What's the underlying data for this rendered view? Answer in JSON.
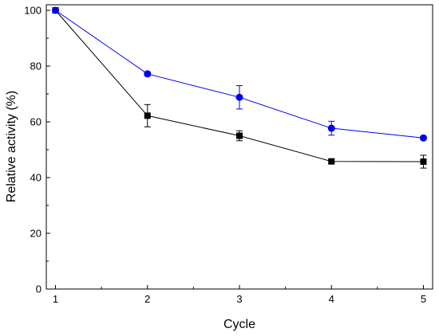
{
  "chart_data": {
    "type": "line",
    "title": "",
    "xlabel": "Cycle",
    "ylabel": "Relative activity (%)",
    "xlim": [
      0.9,
      5.1
    ],
    "ylim": [
      0,
      102
    ],
    "x_ticks": [
      1,
      2,
      3,
      4,
      5
    ],
    "y_ticks": [
      0,
      20,
      40,
      60,
      80,
      100
    ],
    "grid": false,
    "legend": "none",
    "series": [
      {
        "color": "#000000",
        "marker": "square",
        "x": [
          1,
          2,
          3,
          4,
          5
        ],
        "y": [
          100,
          62.2,
          55,
          45.8,
          45.7
        ],
        "err": [
          0,
          4,
          1.8,
          0.6,
          2.3
        ]
      },
      {
        "color": "#0000ee",
        "marker": "circle",
        "x": [
          1,
          2,
          3,
          4,
          5
        ],
        "y": [
          100,
          77.2,
          68.8,
          57.7,
          54.2
        ],
        "err": [
          0,
          0.7,
          4.2,
          2.5,
          0.6
        ]
      }
    ]
  }
}
